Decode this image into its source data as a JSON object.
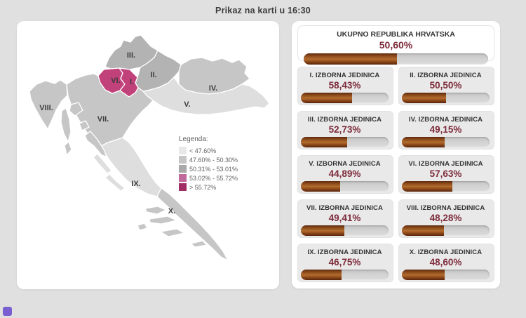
{
  "page": {
    "title": "Prikaz na karti u 16:30",
    "background": "#e0e0e0"
  },
  "total_card": {
    "label": "UKUPNO REPUBLIKA HRVATSKA",
    "value_label": "50,60%",
    "value": 50.6
  },
  "district_cards": [
    {
      "label": "I. IZBORNA JEDINICA",
      "value_label": "58,43%",
      "value": 58.43
    },
    {
      "label": "II. IZBORNA JEDINICA",
      "value_label": "50,50%",
      "value": 50.5
    },
    {
      "label": "III. IZBORNA JEDINICA",
      "value_label": "52,73%",
      "value": 52.73
    },
    {
      "label": "IV. IZBORNA JEDINICA",
      "value_label": "49,15%",
      "value": 49.15
    },
    {
      "label": "V. IZBORNA JEDINICA",
      "value_label": "44,89%",
      "value": 44.89
    },
    {
      "label": "VI. IZBORNA JEDINICA",
      "value_label": "57,63%",
      "value": 57.63
    },
    {
      "label": "VII. IZBORNA JEDINICA",
      "value_label": "49,41%",
      "value": 49.41
    },
    {
      "label": "VIII. IZBORNA JEDINICA",
      "value_label": "48,28%",
      "value": 48.28
    },
    {
      "label": "IX. IZBORNA JEDINICA",
      "value_label": "46,75%",
      "value": 46.75
    },
    {
      "label": "X. IZBORNA JEDINICA",
      "value_label": "48,60%",
      "value": 48.6
    }
  ],
  "map": {
    "legend": {
      "title": "Legenda:",
      "items": [
        {
          "label": "< 47.60%",
          "color": "#e8e8e8"
        },
        {
          "label": "47.60% - 50.30%",
          "color": "#c6c6c6"
        },
        {
          "label": "50.31% - 53.01%",
          "color": "#a9a9a9"
        },
        {
          "label": "53.02% - 55.72%",
          "color": "#c0699a"
        },
        {
          "label": "> 55.72%",
          "color": "#a02d64"
        }
      ]
    },
    "regions": [
      {
        "id": "I",
        "label": "I.",
        "value": 58.43,
        "color": "#c1417b"
      },
      {
        "id": "II",
        "label": "II.",
        "value": 50.5,
        "color": "#b3b3b3"
      },
      {
        "id": "III",
        "label": "III.",
        "value": 52.73,
        "color": "#b3b3b3"
      },
      {
        "id": "IV",
        "label": "IV.",
        "value": 49.15,
        "color": "#c6c6c6"
      },
      {
        "id": "V",
        "label": "V.",
        "value": 44.89,
        "color": "#dedede"
      },
      {
        "id": "VI",
        "label": "VI.",
        "value": 57.63,
        "color": "#c1417b"
      },
      {
        "id": "VII",
        "label": "VII.",
        "value": 49.41,
        "color": "#c6c6c6"
      },
      {
        "id": "VIII",
        "label": "VIII.",
        "value": 48.28,
        "color": "#c6c6c6"
      },
      {
        "id": "IX",
        "label": "IX.",
        "value": 46.75,
        "color": "#dedede"
      },
      {
        "id": "X",
        "label": "X.",
        "value": 48.6,
        "color": "#c6c6c6"
      }
    ]
  },
  "colors": {
    "bar_fill": "#8a4517",
    "bar_track": "#d2d2d2",
    "percent_text": "#7d2b3a",
    "highlight_region": "#c1417b",
    "widget_button": "#7a5fd0"
  },
  "chart_data": {
    "type": "bar",
    "title": "Prikaz na karti u 16:30",
    "categories": [
      "UKUPNO REPUBLIKA HRVATSKA",
      "I. IZBORNA JEDINICA",
      "II. IZBORNA JEDINICA",
      "III. IZBORNA JEDINICA",
      "IV. IZBORNA JEDINICA",
      "V. IZBORNA JEDINICA",
      "VI. IZBORNA JEDINICA",
      "VII. IZBORNA JEDINICA",
      "VIII. IZBORNA JEDINICA",
      "IX. IZBORNA JEDINICA",
      "X. IZBORNA JEDINICA"
    ],
    "values": [
      50.6,
      58.43,
      50.5,
      52.73,
      49.15,
      44.89,
      57.63,
      49.41,
      48.28,
      46.75,
      48.6
    ],
    "unit": "%",
    "value_range": [
      0,
      100
    ],
    "legend_bins": [
      "< 47.60%",
      "47.60% - 50.30%",
      "50.31% - 53.01%",
      "53.02% - 55.72%",
      "> 55.72%"
    ],
    "companion_visual": "choropleth map of 10 Croatian electoral districts; districts I and VI highlighted magenta (> 55.72%)"
  }
}
